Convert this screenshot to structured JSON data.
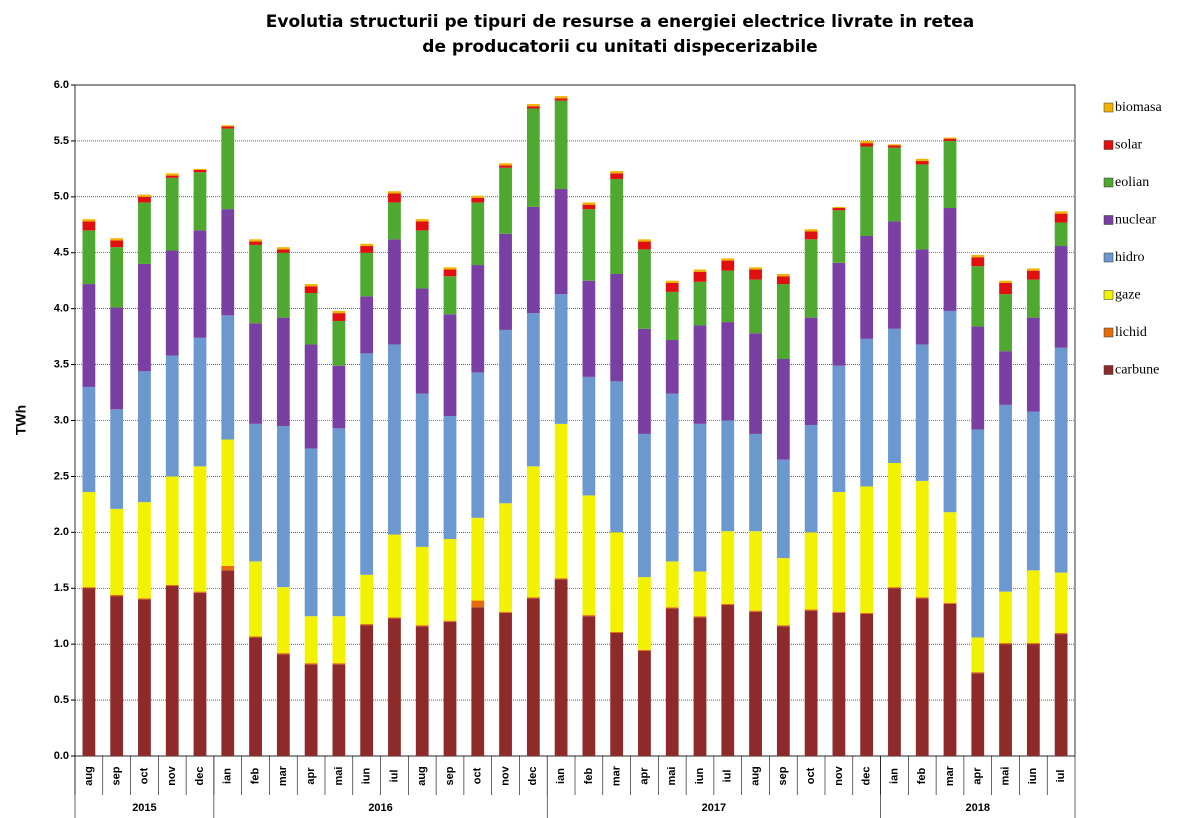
{
  "chart_data": {
    "type": "stacked-bar",
    "title": [
      "Evolutia structurii pe tipuri de resurse a energiei electrice livrate in retea",
      "de producatorii cu unitati dispecerizabile"
    ],
    "y_label": "TWh",
    "categories": [
      "aug",
      "sep",
      "oct",
      "nov",
      "dec",
      "ian",
      "feb",
      "mar",
      "apr",
      "mai",
      "iun",
      "iul",
      "aug",
      "sep",
      "oct",
      "nov",
      "dec",
      "ian",
      "feb",
      "mar",
      "apr",
      "mai",
      "iun",
      "iul",
      "aug",
      "sep",
      "oct",
      "nov",
      "dec",
      "ian",
      "feb",
      "mar",
      "apr",
      "mai",
      "iun",
      "iul"
    ],
    "groups": [
      {
        "label": "2015",
        "size": 5
      },
      {
        "label": "2016",
        "size": 12
      },
      {
        "label": "2017",
        "size": 12
      },
      {
        "label": "2018",
        "size": 7
      }
    ],
    "ylim": [
      0,
      6
    ],
    "yticks": [
      {
        "value": 0,
        "label": "0.0"
      },
      0.5,
      {
        "value": 1,
        "label": "1.0"
      },
      1.5,
      {
        "value": 2,
        "label": "2.0"
      },
      2.5,
      {
        "value": 3,
        "label": "3.0"
      },
      3.5,
      {
        "value": 4,
        "label": "4.0"
      },
      4.5,
      {
        "value": 5,
        "label": "5.0"
      },
      5.5,
      {
        "value": 6,
        "label": "6.0"
      }
    ],
    "grid": true,
    "legend": "right",
    "series": [
      {
        "name": "carbune",
        "color": "#8e2a2a",
        "values": [
          1.5,
          1.43,
          1.4,
          1.52,
          1.46,
          1.66,
          1.06,
          0.91,
          0.82,
          0.82,
          1.17,
          1.23,
          1.16,
          1.2,
          1.33,
          1.28,
          1.41,
          1.58,
          1.25,
          1.1,
          0.94,
          1.32,
          1.24,
          1.35,
          1.29,
          1.16,
          1.3,
          1.28,
          1.27,
          1.5,
          1.41,
          1.36,
          0.74,
          1.0,
          1.0,
          1.09
        ]
      },
      {
        "name": "lichid",
        "color": "#e46c0a",
        "values": [
          0.01,
          0.01,
          0.01,
          0.01,
          0.01,
          0.04,
          0.01,
          0.01,
          0.01,
          0.01,
          0.01,
          0.01,
          0.01,
          0.01,
          0.06,
          0.01,
          0.01,
          0.01,
          0.01,
          0.01,
          0.01,
          0.01,
          0.01,
          0.01,
          0.01,
          0.01,
          0.01,
          0.01,
          0.01,
          0.01,
          0.01,
          0.01,
          0.01,
          0.01,
          0.01,
          0.01
        ]
      },
      {
        "name": "gaze",
        "color": "#f2f200",
        "values": [
          0.85,
          0.77,
          0.86,
          0.97,
          1.12,
          1.13,
          0.67,
          0.59,
          0.42,
          0.42,
          0.44,
          0.74,
          0.7,
          0.73,
          0.74,
          0.97,
          1.17,
          1.38,
          1.07,
          0.89,
          0.65,
          0.41,
          0.4,
          0.65,
          0.71,
          0.6,
          0.69,
          1.07,
          1.13,
          1.11,
          1.04,
          0.81,
          0.31,
          0.46,
          0.65,
          0.54
        ]
      },
      {
        "name": "hidro",
        "color": "#6b98cf",
        "values": [
          0.94,
          0.89,
          1.17,
          1.08,
          1.15,
          1.11,
          1.23,
          1.44,
          1.5,
          1.68,
          1.98,
          1.7,
          1.37,
          1.1,
          1.3,
          1.55,
          1.37,
          1.16,
          1.06,
          1.35,
          1.28,
          1.5,
          1.32,
          0.99,
          0.87,
          0.88,
          0.96,
          1.13,
          1.32,
          1.2,
          1.22,
          1.8,
          1.86,
          1.67,
          1.42,
          2.01
        ]
      },
      {
        "name": "nuclear",
        "color": "#7a3fa3",
        "values": [
          0.92,
          0.91,
          0.96,
          0.94,
          0.96,
          0.95,
          0.9,
          0.97,
          0.93,
          0.56,
          0.51,
          0.94,
          0.94,
          0.91,
          0.96,
          0.86,
          0.95,
          0.94,
          0.86,
          0.96,
          0.94,
          0.48,
          0.88,
          0.88,
          0.9,
          0.9,
          0.96,
          0.92,
          0.92,
          0.96,
          0.85,
          0.92,
          0.92,
          0.48,
          0.84,
          0.91
        ]
      },
      {
        "name": "eolian",
        "color": "#4fa82f",
        "values": [
          0.48,
          0.54,
          0.55,
          0.65,
          0.52,
          0.72,
          0.7,
          0.58,
          0.46,
          0.4,
          0.39,
          0.33,
          0.52,
          0.34,
          0.56,
          0.59,
          0.88,
          0.79,
          0.64,
          0.85,
          0.71,
          0.43,
          0.39,
          0.46,
          0.48,
          0.67,
          0.7,
          0.47,
          0.8,
          0.66,
          0.76,
          0.6,
          0.54,
          0.51,
          0.34,
          0.21
        ]
      },
      {
        "name": "solar",
        "color": "#e01010",
        "values": [
          0.08,
          0.06,
          0.05,
          0.02,
          0.02,
          0.02,
          0.03,
          0.03,
          0.06,
          0.07,
          0.06,
          0.08,
          0.08,
          0.06,
          0.04,
          0.02,
          0.02,
          0.02,
          0.04,
          0.05,
          0.07,
          0.08,
          0.09,
          0.09,
          0.09,
          0.07,
          0.07,
          0.02,
          0.03,
          0.02,
          0.03,
          0.02,
          0.08,
          0.1,
          0.08,
          0.08
        ]
      },
      {
        "name": "biomasa",
        "color": "#f0b400",
        "values": [
          0.02,
          0.02,
          0.02,
          0.02,
          0.01,
          0.01,
          0.02,
          0.02,
          0.02,
          0.02,
          0.02,
          0.02,
          0.02,
          0.02,
          0.02,
          0.02,
          0.02,
          0.02,
          0.02,
          0.02,
          0.02,
          0.02,
          0.02,
          0.02,
          0.02,
          0.02,
          0.02,
          0.01,
          0.02,
          0.01,
          0.02,
          0.01,
          0.02,
          0.02,
          0.02,
          0.02
        ]
      }
    ]
  }
}
